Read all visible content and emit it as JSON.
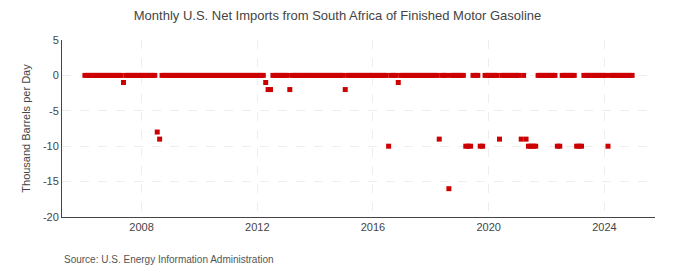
{
  "chart_data": {
    "type": "scatter",
    "title": "Monthly U.S. Net Imports from South Africa of Finished Motor Gasoline",
    "ylabel": "Thousand Barrels per Day",
    "annotations": [
      "Source: U.S. Energy Information Administration"
    ],
    "color": "#cc0000",
    "marker": "square",
    "grid": true,
    "xlim": [
      2005.25,
      2025.75
    ],
    "xticks": [
      2008,
      2012,
      2016,
      2020,
      2024
    ],
    "ylim": [
      -20,
      5
    ],
    "yticks": [
      -20,
      -15,
      -10,
      -5,
      0,
      5
    ],
    "x": [
      2006.0416666666667,
      2006.125,
      2006.2083333333333,
      2006.2916666666667,
      2006.375,
      2006.4583333333333,
      2006.5416666666667,
      2006.625,
      2006.7083333333333,
      2006.7916666666667,
      2006.875,
      2006.9583333333333,
      2007.0416666666667,
      2007.125,
      2007.2083333333333,
      2007.2916666666667,
      2007.375,
      2007.4583333333333,
      2007.5416666666667,
      2007.625,
      2007.7083333333333,
      2007.7916666666667,
      2007.875,
      2007.9583333333333,
      2008.0416666666667,
      2008.125,
      2008.2083333333333,
      2008.2916666666667,
      2008.375,
      2008.4583333333333,
      2008.5416666666667,
      2008.625,
      2008.7083333333333,
      2008.7916666666667,
      2008.875,
      2008.9583333333333,
      2009.0416666666667,
      2009.125,
      2009.2083333333333,
      2009.2916666666667,
      2009.375,
      2009.4583333333333,
      2009.5416666666667,
      2009.625,
      2009.7083333333333,
      2009.7916666666667,
      2009.875,
      2009.9583333333333,
      2010.0416666666667,
      2010.125,
      2010.2083333333333,
      2010.2916666666667,
      2010.375,
      2010.4583333333333,
      2010.5416666666667,
      2010.625,
      2010.7083333333333,
      2010.7916666666667,
      2010.875,
      2010.9583333333333,
      2011.0416666666667,
      2011.125,
      2011.2083333333333,
      2011.2916666666667,
      2011.375,
      2011.4583333333333,
      2011.5416666666667,
      2011.625,
      2011.7083333333333,
      2011.7916666666667,
      2011.875,
      2011.9583333333333,
      2012.0416666666667,
      2012.125,
      2012.2083333333333,
      2012.2916666666667,
      2012.375,
      2012.4583333333333,
      2012.5416666666667,
      2012.625,
      2012.7083333333333,
      2012.7916666666667,
      2012.875,
      2012.9583333333333,
      2013.0416666666667,
      2013.125,
      2013.2083333333333,
      2013.2916666666667,
      2013.375,
      2013.4583333333333,
      2013.5416666666667,
      2013.625,
      2013.7083333333333,
      2013.7916666666667,
      2013.875,
      2013.9583333333333,
      2014.0416666666667,
      2014.125,
      2014.2083333333333,
      2014.2916666666667,
      2014.375,
      2014.4583333333333,
      2014.5416666666667,
      2014.625,
      2014.7083333333333,
      2014.7916666666667,
      2014.875,
      2014.9583333333333,
      2015.0416666666667,
      2015.125,
      2015.2083333333333,
      2015.2916666666667,
      2015.375,
      2015.4583333333333,
      2015.5416666666667,
      2015.625,
      2015.7083333333333,
      2015.7916666666667,
      2015.875,
      2015.9583333333333,
      2016.0416666666667,
      2016.125,
      2016.2083333333333,
      2016.2916666666667,
      2016.375,
      2016.4583333333333,
      2016.5416666666667,
      2016.625,
      2016.7083333333333,
      2016.7916666666667,
      2016.875,
      2016.9583333333333,
      2017.0416666666667,
      2017.125,
      2017.2083333333333,
      2017.2916666666667,
      2017.375,
      2017.4583333333333,
      2017.5416666666667,
      2017.625,
      2017.7083333333333,
      2017.7916666666667,
      2017.875,
      2017.9583333333333,
      2018.0416666666667,
      2018.125,
      2018.2083333333333,
      2018.2916666666667,
      2018.375,
      2018.4583333333333,
      2018.5416666666667,
      2018.625,
      2018.7083333333333,
      2018.7916666666667,
      2018.875,
      2018.9583333333333,
      2019.0416666666667,
      2019.125,
      2019.2083333333333,
      2019.2916666666667,
      2019.375,
      2019.4583333333333,
      2019.5416666666667,
      2019.625,
      2019.7083333333333,
      2019.7916666666667,
      2019.875,
      2019.9583333333333,
      2020.0416666666667,
      2020.125,
      2020.2083333333333,
      2020.2916666666667,
      2020.375,
      2020.4583333333333,
      2020.5416666666667,
      2020.625,
      2020.7083333333333,
      2020.7916666666667,
      2020.875,
      2020.9583333333333,
      2021.0416666666667,
      2021.125,
      2021.2083333333333,
      2021.2916666666667,
      2021.375,
      2021.4583333333333,
      2021.5416666666667,
      2021.625,
      2021.7083333333333,
      2021.7916666666667,
      2021.875,
      2021.9583333333333,
      2022.0416666666667,
      2022.125,
      2022.2083333333333,
      2022.2916666666667,
      2022.375,
      2022.4583333333333,
      2022.5416666666667,
      2022.625,
      2022.7083333333333,
      2022.7916666666667,
      2022.875,
      2022.9583333333333,
      2023.0416666666667,
      2023.125,
      2023.2083333333333,
      2023.2916666666667,
      2023.375,
      2023.4583333333333,
      2023.5416666666667,
      2023.625,
      2023.7083333333333,
      2023.7916666666667,
      2023.875,
      2023.9583333333333,
      2024.0416666666667,
      2024.125,
      2024.2083333333333,
      2024.2916666666667,
      2024.375,
      2024.4583333333333,
      2024.5416666666667,
      2024.625,
      2024.7083333333333,
      2024.7916666666667,
      2024.875,
      2024.9583333333333
    ],
    "values": [
      0,
      0,
      0,
      0,
      0,
      0,
      0,
      0,
      0,
      0,
      0,
      0,
      0,
      0,
      0,
      0,
      -1,
      0,
      0,
      0,
      0,
      0,
      0,
      0,
      0,
      0,
      0,
      0,
      0,
      0,
      -8,
      -9,
      0,
      0,
      0,
      0,
      0,
      0,
      0,
      0,
      0,
      0,
      0,
      0,
      0,
      0,
      0,
      0,
      0,
      0,
      0,
      0,
      0,
      0,
      0,
      0,
      0,
      0,
      0,
      0,
      0,
      0,
      0,
      0,
      0,
      0,
      0,
      0,
      0,
      0,
      0,
      0,
      0,
      0,
      0,
      -1,
      -2,
      -2,
      0,
      0,
      0,
      0,
      0,
      0,
      0,
      -2,
      0,
      0,
      0,
      0,
      0,
      0,
      0,
      0,
      0,
      0,
      0,
      0,
      0,
      0,
      0,
      0,
      0,
      0,
      0,
      0,
      0,
      0,
      -2,
      0,
      0,
      0,
      0,
      0,
      0,
      0,
      0,
      0,
      0,
      0,
      0,
      0,
      0,
      0,
      0,
      0,
      -10,
      0,
      0,
      0,
      -1,
      0,
      0,
      0,
      0,
      0,
      0,
      0,
      0,
      0,
      0,
      0,
      0,
      0,
      0,
      0,
      0,
      -9,
      0,
      0,
      0,
      -16,
      0,
      0,
      0,
      0,
      0,
      0,
      -10,
      -10,
      -10,
      0,
      0,
      0,
      -10,
      -10,
      0,
      0,
      0,
      0,
      0,
      0,
      -9,
      0,
      0,
      0,
      0,
      0,
      0,
      0,
      0,
      -9,
      0,
      -9,
      -10,
      -10,
      -10,
      -10,
      0,
      0,
      0,
      0,
      0,
      0,
      0,
      0,
      -10,
      -10,
      0,
      0,
      0,
      0,
      0,
      0,
      -10,
      -10,
      -10,
      0,
      0,
      0,
      0,
      0,
      0,
      0,
      0,
      0,
      0,
      -10,
      0,
      0,
      0,
      0,
      0,
      0,
      0,
      0,
      0,
      0
    ]
  }
}
